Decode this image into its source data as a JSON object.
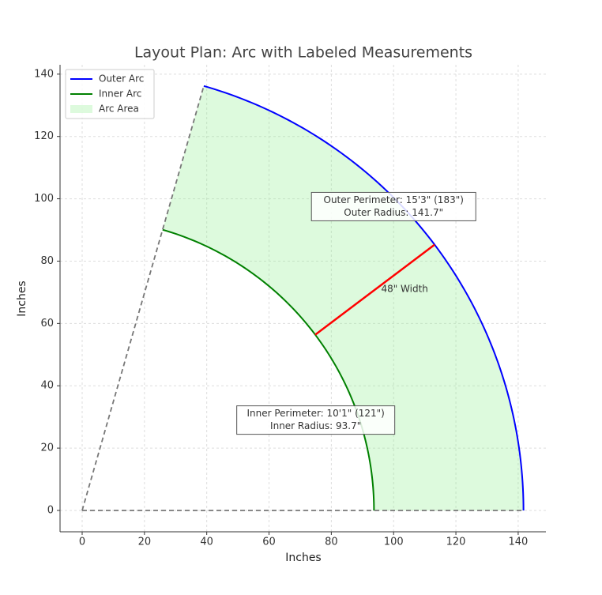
{
  "chart_data": {
    "type": "arc",
    "title": "Layout Plan: Arc with Labeled Measurements",
    "xlabel": "Inches",
    "ylabel": "Inches",
    "xlim": [
      -7.1,
      148.9
    ],
    "ylim": [
      -6.85,
      143
    ],
    "xticks": [
      0,
      20,
      40,
      60,
      80,
      100,
      120,
      140
    ],
    "yticks": [
      0,
      20,
      40,
      60,
      80,
      100,
      120,
      140
    ],
    "grid": true,
    "legend": "upper left",
    "angle_range": [
      0,
      74
    ],
    "series": [
      {
        "name": "Outer Arc",
        "color": "#0000ff",
        "radius": 141.7
      },
      {
        "name": "Inner Arc",
        "color": "#008000",
        "radius": 93.7
      }
    ],
    "area": {
      "name": "Arc Area",
      "color": "#90ee90"
    },
    "width_line": {
      "angle": 37,
      "color": "#ff0000",
      "label": "48\" Width"
    },
    "annotations": [
      {
        "lines": [
          "Outer Perimeter: 15'3\" (183\")",
          "Outer Radius: 141.7\""
        ],
        "color": "#0000ff"
      },
      {
        "lines": [
          "Inner Perimeter: 10'1\" (121\")",
          "Inner Radius: 93.7\""
        ],
        "color": "#008000"
      }
    ]
  }
}
